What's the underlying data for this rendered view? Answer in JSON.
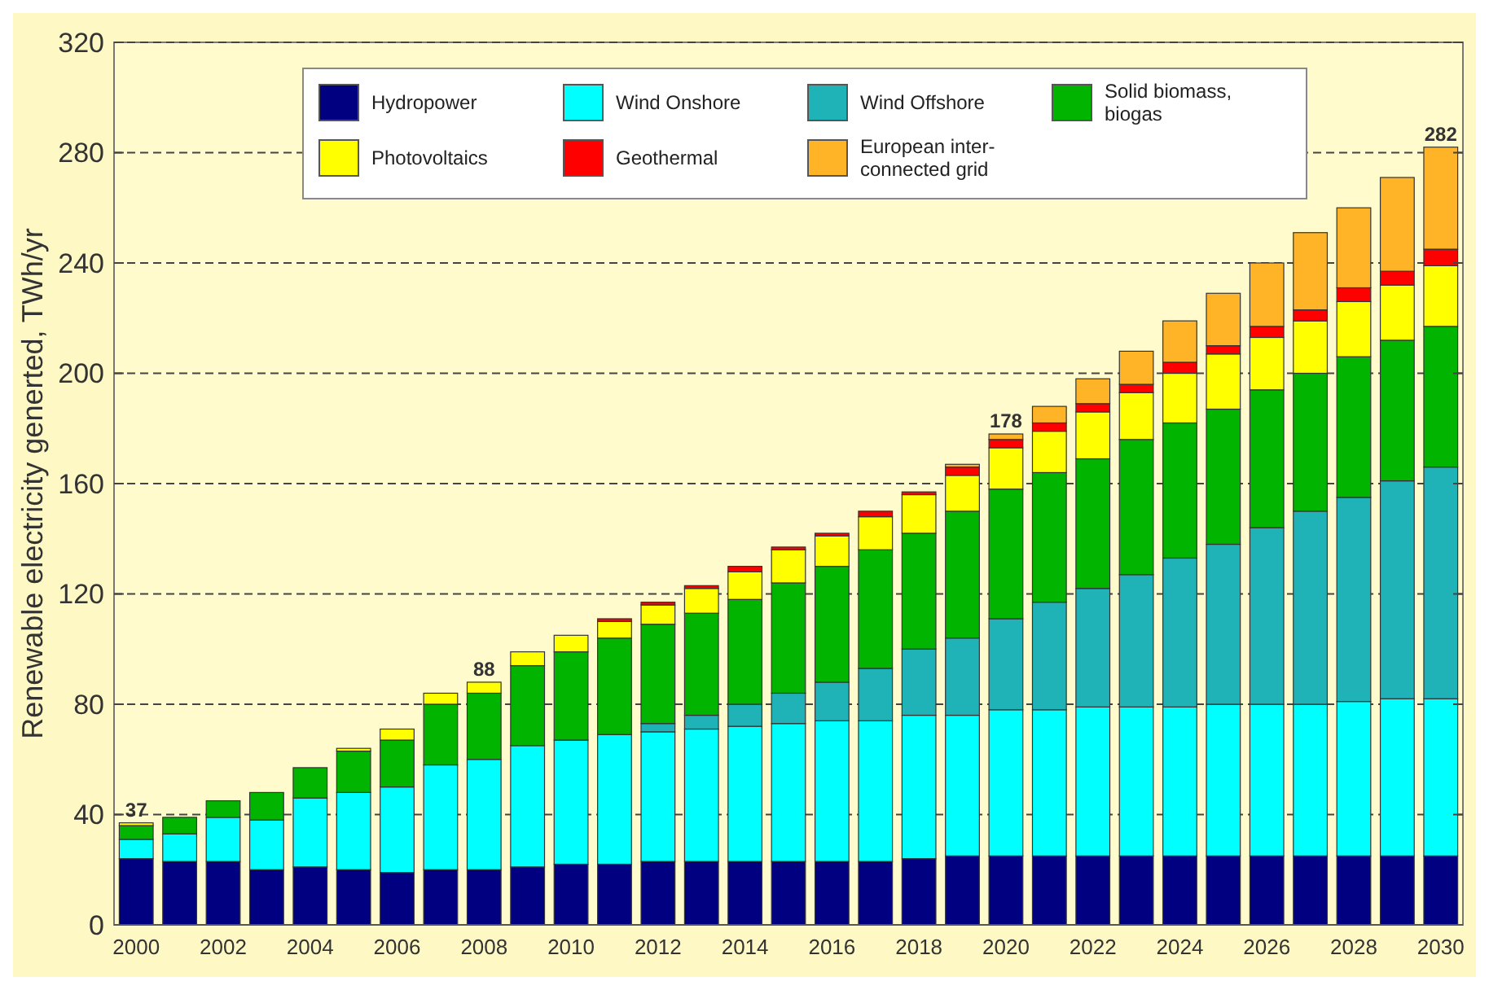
{
  "chart_data": {
    "type": "bar",
    "stacked": true,
    "ylabel": "Renewable electricity generted, TWh/yr",
    "categories": [
      "2000",
      null,
      "2002",
      null,
      "2004",
      null,
      "2006",
      null,
      "2008",
      null,
      "2010",
      null,
      "2012",
      null,
      "2014",
      null,
      "2016",
      null,
      "2018",
      null,
      "2020",
      null,
      "2022",
      null,
      "2024",
      null,
      "2026",
      null,
      "2028",
      null,
      "2030"
    ],
    "series": [
      {
        "name": "Hydropower",
        "color": "#000080",
        "values": [
          24,
          23,
          23,
          20,
          21,
          20,
          19,
          20,
          20,
          21,
          22,
          22,
          23,
          23,
          23,
          23,
          23,
          23,
          24,
          25,
          25,
          25,
          25,
          25,
          25,
          25,
          25,
          25,
          25,
          25,
          25
        ]
      },
      {
        "name": "Wind Onshore",
        "color": "#00ffff",
        "values": [
          7,
          10,
          16,
          18,
          25,
          28,
          31,
          38,
          40,
          44,
          45,
          47,
          47,
          48,
          49,
          50,
          51,
          51,
          52,
          51,
          53,
          53,
          54,
          54,
          54,
          55,
          55,
          55,
          56,
          57,
          57
        ]
      },
      {
        "name": "Wind Offshore",
        "color": "#1fb3b8",
        "values": [
          0,
          0,
          0,
          0,
          0,
          0,
          0,
          0,
          0,
          0,
          0,
          0,
          3,
          5,
          8,
          11,
          14,
          19,
          24,
          28,
          33,
          39,
          43,
          48,
          54,
          58,
          64,
          70,
          74,
          79,
          84
        ]
      },
      {
        "name": "Solid biomass, biogas",
        "color": "#00b400",
        "values": [
          5,
          6,
          6,
          10,
          11,
          15,
          17,
          22,
          24,
          29,
          32,
          35,
          36,
          37,
          38,
          40,
          42,
          43,
          42,
          46,
          47,
          47,
          47,
          49,
          49,
          49,
          50,
          50,
          51,
          51,
          51
        ]
      },
      {
        "name": "Photovoltaics",
        "color": "#ffff00",
        "values": [
          1,
          0,
          0,
          0,
          0,
          1,
          4,
          4,
          4,
          5,
          6,
          6,
          7,
          9,
          10,
          12,
          11,
          12,
          14,
          13,
          15,
          15,
          17,
          17,
          18,
          20,
          19,
          19,
          20,
          20,
          22
        ]
      },
      {
        "name": "Geothermal",
        "color": "#ff0000",
        "values": [
          0,
          0,
          0,
          0,
          0,
          0,
          0,
          0,
          0,
          0,
          0,
          1,
          1,
          1,
          2,
          1,
          1,
          2,
          1,
          3,
          3,
          3,
          3,
          3,
          4,
          3,
          4,
          4,
          5,
          5,
          6
        ]
      },
      {
        "name": "European inter-connected grid",
        "color": "#ffb428",
        "values": [
          0,
          0,
          0,
          0,
          0,
          0,
          0,
          0,
          0,
          0,
          0,
          0,
          0,
          0,
          0,
          0,
          0,
          0,
          0,
          1,
          2,
          6,
          9,
          12,
          15,
          19,
          23,
          28,
          29,
          34,
          37
        ]
      }
    ],
    "totals": [
      "37",
      null,
      null,
      null,
      null,
      null,
      null,
      null,
      "88",
      null,
      null,
      null,
      null,
      null,
      null,
      null,
      null,
      null,
      null,
      null,
      "178",
      null,
      null,
      null,
      null,
      null,
      null,
      null,
      null,
      null,
      "282"
    ],
    "ylim": [
      0,
      320
    ],
    "yticks": [
      0,
      40,
      80,
      120,
      160,
      200,
      240,
      280,
      320
    ],
    "grid": "y",
    "legend": "top"
  }
}
